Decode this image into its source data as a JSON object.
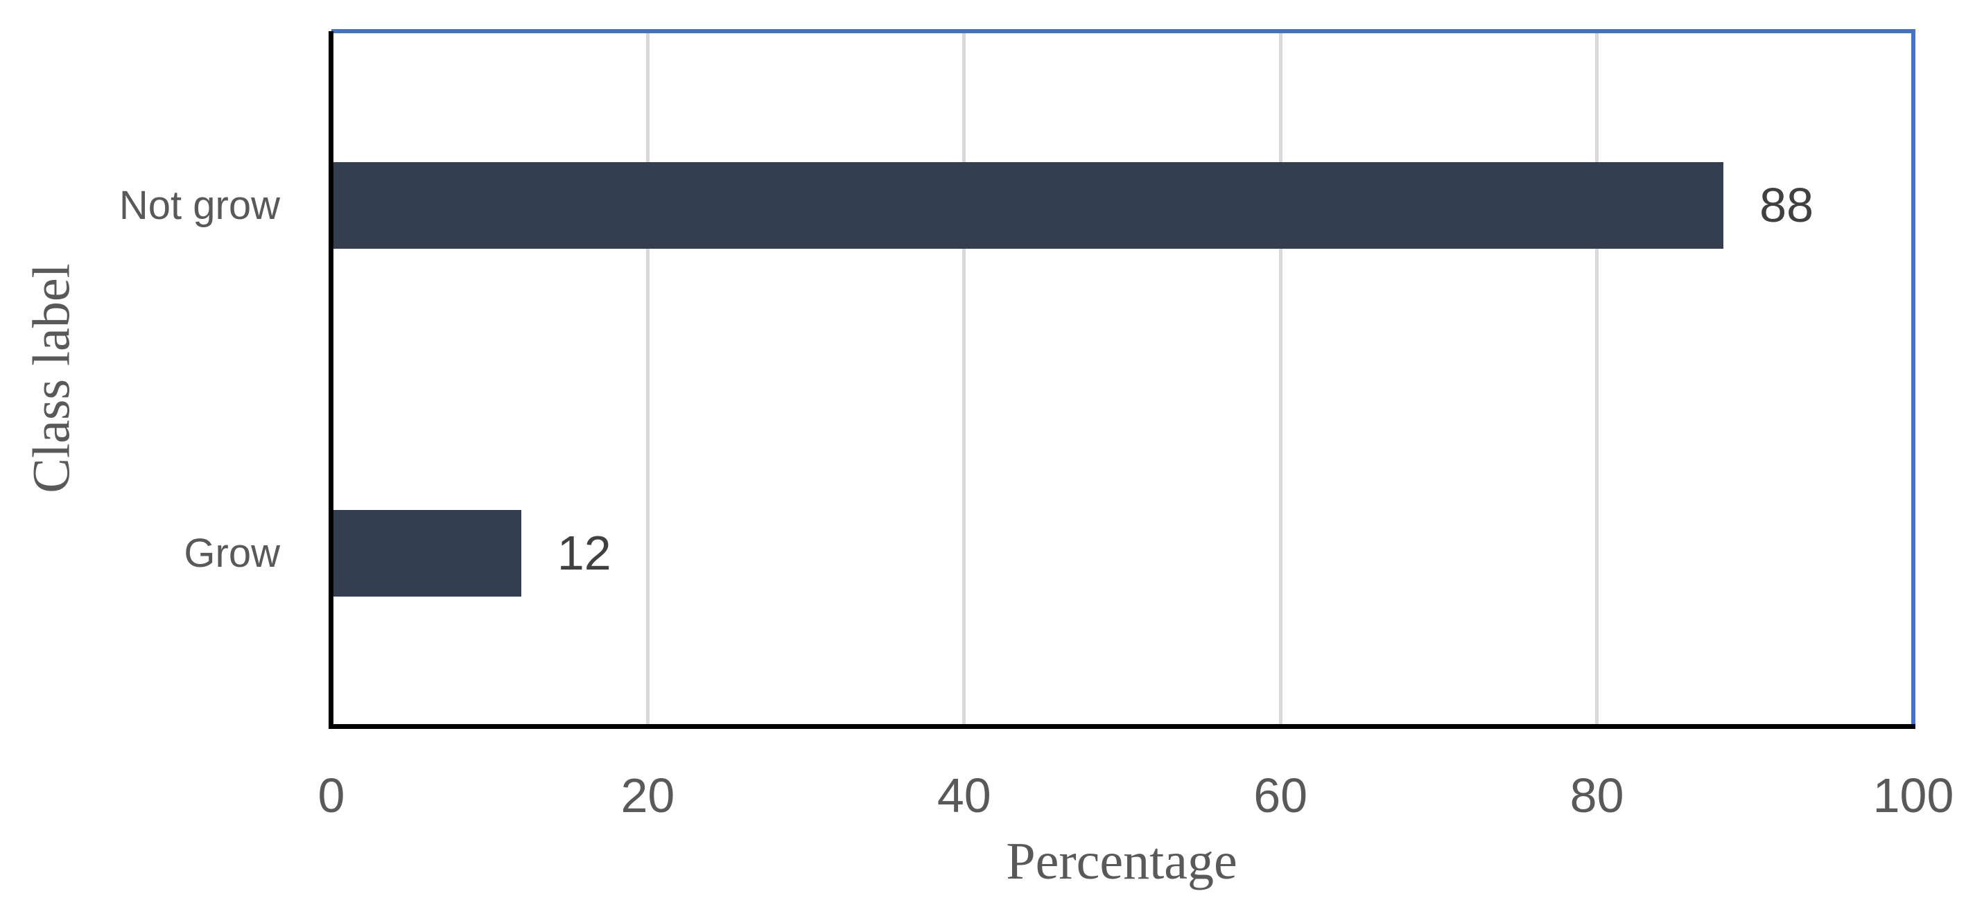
{
  "chart_data": {
    "type": "bar",
    "orientation": "horizontal",
    "categories": [
      "Not grow",
      "Grow"
    ],
    "values": [
      88,
      12
    ],
    "data_labels": [
      "88",
      "12"
    ],
    "title": "",
    "xlabel": "Percentage",
    "ylabel": "Class label",
    "xlim": [
      0,
      100
    ],
    "xticks": [
      "0",
      "20",
      "40",
      "60",
      "80",
      "100"
    ],
    "grid": "vertical-major",
    "legend": "none"
  },
  "colors": {
    "bar_fill": "#333F50",
    "plot_border": "#4472C4",
    "gridline": "#D9D9D9",
    "axis_line": "#000000",
    "tick_label": "#595959",
    "category_label": "#595959",
    "data_label": "#404040",
    "axis_title": "#595959",
    "background": "#FFFFFF"
  }
}
